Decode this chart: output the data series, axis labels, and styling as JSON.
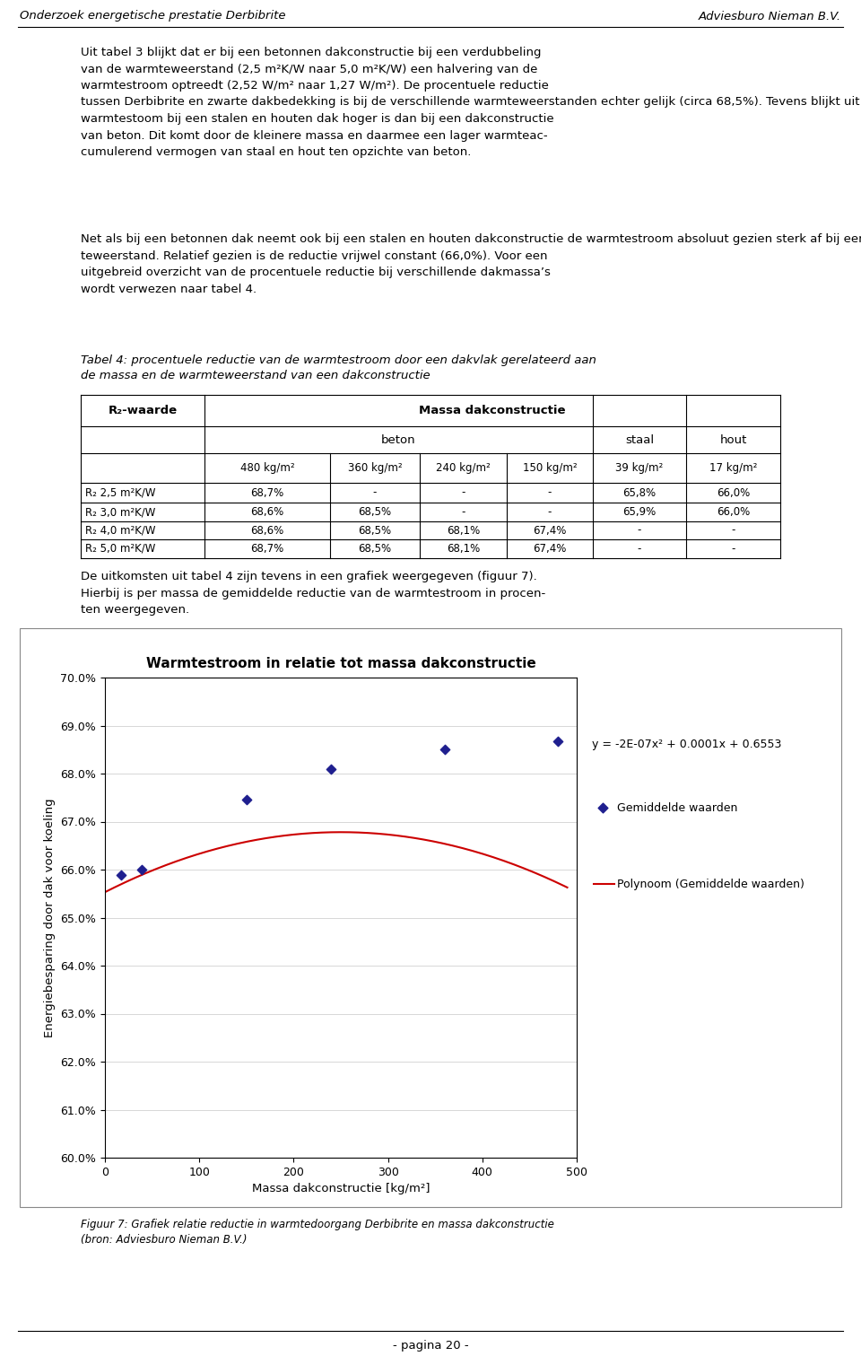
{
  "title": "Warmtestroom in relatie tot massa dakconstructie",
  "xlabel": "Massa dakconstructie [kg/m²]",
  "ylabel": "Energiebesparing door dak voor koeling",
  "xlim": [
    0,
    500
  ],
  "ylim": [
    0.6,
    0.7
  ],
  "ytick_vals": [
    0.6,
    0.61,
    0.62,
    0.63,
    0.64,
    0.65,
    0.66,
    0.67,
    0.68,
    0.69,
    0.7
  ],
  "xtick_vals": [
    0,
    100,
    200,
    300,
    400,
    500
  ],
  "data_x": [
    17,
    39,
    150,
    240,
    360,
    480
  ],
  "data_y": [
    0.6588,
    0.66,
    0.6745,
    0.681,
    0.685,
    0.6868
  ],
  "poly_a": -2e-07,
  "poly_b": 0.0001,
  "poly_c": 0.6553,
  "equation": "y = -2E-07x² + 0.0001x + 0.6553",
  "legend_scatter": "Gemiddelde waarden",
  "legend_line": "Polynoom (Gemiddelde waarden)",
  "scatter_color": "#1F1F8F",
  "line_color": "#CC0000",
  "page_bg": "#FFFFFF",
  "plot_bg": "#FFFFFF",
  "grid_color": "#C8C8C8",
  "header_left": "Onderzoek energetische prestatie Derbibrite",
  "header_right": "Adviesburo Nieman B.V.",
  "footer_text": "- pagina 20 -",
  "fig_caption": "Figuur 7: Grafiek relatie reductie in warmtedoorgang Derbibrite en massa dakconstructie\n(bron: Adviesburo Nieman B.V.)",
  "tabel_caption": "Tabel 4: procentuele reductie van de warmtestroom door een dakvlak gerelateerd aan\nde massa en de warmteweerstand van een dakconstructie"
}
